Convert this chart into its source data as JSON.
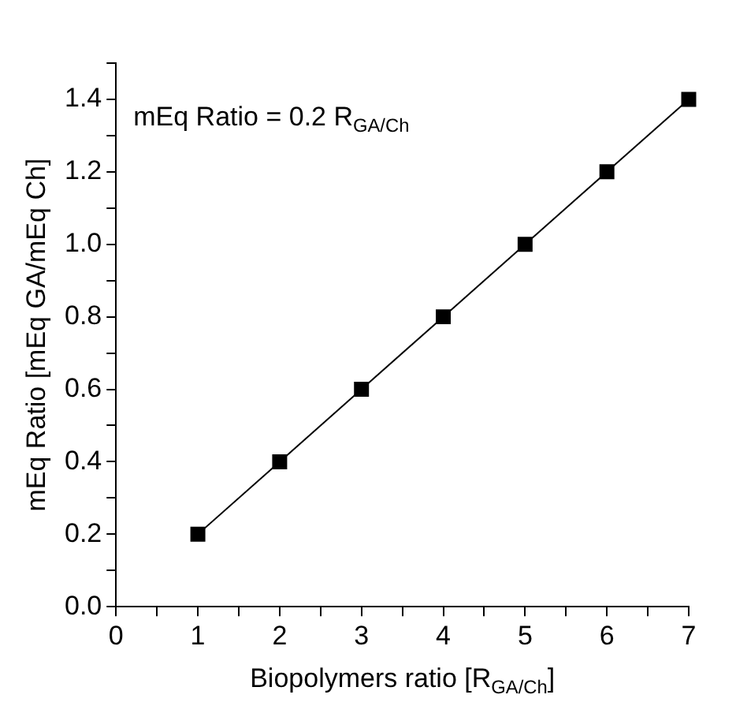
{
  "chart_data": {
    "type": "line",
    "xlabel": "Biopolymers ratio [R$_{GA/Ch}$]",
    "ylabel": "mEq Ratio [mEq GA/mEq Ch]",
    "annotations": [
      "mEq Ratio = 0.2 R$_{GA/Ch}$"
    ],
    "x": [
      1,
      2,
      3,
      4,
      5,
      6,
      7
    ],
    "series": [
      {
        "color": "#000000",
        "values": [
          0.2,
          0.4,
          0.6,
          0.8,
          1.0,
          1.2,
          1.4
        ]
      }
    ],
    "marker": "square",
    "line_style": "solid",
    "grid": false,
    "legend": false,
    "xlim": [
      0,
      7
    ],
    "xticks": [
      0,
      {
        "value": 0.5,
        "label": null
      },
      1,
      {
        "value": 1.5,
        "label": null
      },
      2,
      {
        "value": 2.5,
        "label": null
      },
      3,
      {
        "value": 3.5,
        "label": null
      },
      4,
      {
        "value": 4.5,
        "label": null
      },
      5,
      {
        "value": 5.5,
        "label": null
      },
      6,
      {
        "value": 6.5,
        "label": null
      },
      7
    ],
    "ylim": [
      0,
      1.5
    ],
    "yticks": [
      {
        "value": 0,
        "label": "0.0"
      },
      {
        "value": 0.1,
        "label": null
      },
      {
        "value": 0.2,
        "label": "0.2"
      },
      {
        "value": 0.3,
        "label": null
      },
      {
        "value": 0.4,
        "label": "0.4"
      },
      {
        "value": 0.5,
        "label": null
      },
      {
        "value": 0.6,
        "label": "0.6"
      },
      {
        "value": 0.7,
        "label": null
      },
      {
        "value": 0.8,
        "label": "0.8"
      },
      {
        "value": 0.9,
        "label": null
      },
      {
        "value": 1.0,
        "label": "1.0"
      },
      {
        "value": 1.1,
        "label": null
      },
      {
        "value": 1.2,
        "label": "1.2"
      },
      {
        "value": 1.3,
        "label": null
      },
      {
        "value": 1.4,
        "label": "1.4"
      },
      {
        "value": 1.5,
        "label": null
      }
    ]
  }
}
